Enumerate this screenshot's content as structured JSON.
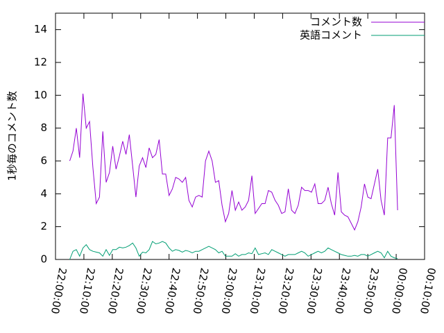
{
  "chart_data": {
    "type": "line",
    "y_label": "1秒毎のコメント数",
    "x": [
      "22:05:00",
      "22:06:10",
      "22:07:20",
      "22:08:30",
      "22:09:40",
      "22:10:50",
      "22:12:00",
      "22:13:10",
      "22:14:20",
      "22:15:30",
      "22:16:40",
      "22:17:50",
      "22:19:00",
      "22:20:10",
      "22:21:20",
      "22:22:30",
      "22:23:40",
      "22:24:50",
      "22:26:00",
      "22:27:10",
      "22:28:20",
      "22:29:30",
      "22:30:40",
      "22:31:50",
      "22:33:00",
      "22:34:10",
      "22:35:20",
      "22:36:30",
      "22:37:40",
      "22:38:50",
      "22:40:00",
      "22:41:10",
      "22:42:20",
      "22:43:30",
      "22:44:40",
      "22:45:50",
      "22:47:00",
      "22:48:10",
      "22:49:20",
      "22:50:30",
      "22:51:40",
      "22:52:50",
      "22:54:00",
      "22:55:10",
      "22:56:20",
      "22:57:30",
      "22:58:40",
      "22:59:50",
      "23:01:00",
      "23:02:10",
      "23:03:20",
      "23:04:30",
      "23:05:40",
      "23:06:50",
      "23:08:00",
      "23:09:10",
      "23:10:20",
      "23:11:30",
      "23:12:40",
      "23:13:50",
      "23:15:00",
      "23:16:10",
      "23:17:20",
      "23:18:30",
      "23:19:40",
      "23:20:50",
      "23:22:00",
      "23:23:10",
      "23:24:20",
      "23:25:30",
      "23:26:40",
      "23:27:50",
      "23:29:00",
      "23:30:10",
      "23:31:20",
      "23:32:30",
      "23:33:40",
      "23:34:50",
      "23:36:00",
      "23:37:10",
      "23:38:20",
      "23:39:30",
      "23:40:40",
      "23:41:50",
      "23:43:00",
      "23:44:10",
      "23:45:20",
      "23:46:30",
      "23:47:40",
      "23:48:50",
      "23:50:00",
      "23:51:10",
      "23:52:20",
      "23:53:30",
      "23:54:40",
      "23:55:50",
      "23:57:00",
      "23:58:10",
      "23:59:20",
      "00:00:30"
    ],
    "series": [
      {
        "name": "コメント数",
        "color": "#9400d3",
        "values": [
          6.0,
          6.6,
          8.0,
          6.2,
          10.1,
          8.0,
          8.4,
          5.6,
          3.4,
          3.8,
          7.8,
          4.7,
          5.3,
          6.9,
          5.5,
          6.3,
          7.2,
          6.4,
          7.6,
          5.7,
          3.8,
          5.7,
          6.2,
          5.6,
          6.8,
          6.2,
          6.4,
          7.3,
          5.2,
          5.2,
          3.9,
          4.3,
          5.0,
          4.9,
          4.7,
          5.0,
          3.6,
          3.2,
          3.8,
          3.9,
          3.8,
          6.0,
          6.6,
          6.0,
          4.7,
          4.8,
          3.3,
          2.3,
          2.8,
          4.2,
          3.0,
          3.5,
          3.0,
          3.2,
          3.6,
          5.1,
          2.8,
          3.1,
          3.4,
          3.4,
          4.2,
          4.1,
          3.6,
          3.3,
          2.8,
          2.9,
          4.3,
          3.0,
          2.8,
          3.3,
          4.4,
          4.2,
          4.2,
          4.1,
          4.6,
          3.4,
          3.4,
          3.6,
          4.4,
          3.4,
          2.7,
          5.3,
          2.9,
          2.7,
          2.6,
          2.2,
          1.8,
          2.3,
          3.2,
          4.6,
          3.8,
          3.7,
          4.6,
          5.5,
          3.6,
          2.7,
          7.4,
          7.4,
          9.4,
          3.0
        ]
      },
      {
        "name": "英語コメント",
        "color": "#009e73",
        "values": [
          0.0,
          0.5,
          0.6,
          0.2,
          0.7,
          0.9,
          0.6,
          0.5,
          0.45,
          0.4,
          0.2,
          0.6,
          0.25,
          0.6,
          0.6,
          0.75,
          0.7,
          0.75,
          0.85,
          1.0,
          0.7,
          0.2,
          0.45,
          0.4,
          0.6,
          1.1,
          0.95,
          1.0,
          1.1,
          1.0,
          0.7,
          0.5,
          0.6,
          0.55,
          0.45,
          0.55,
          0.5,
          0.4,
          0.5,
          0.5,
          0.6,
          0.7,
          0.8,
          0.7,
          0.6,
          0.4,
          0.5,
          0.2,
          0.2,
          0.2,
          0.35,
          0.2,
          0.3,
          0.3,
          0.4,
          0.35,
          0.7,
          0.3,
          0.35,
          0.4,
          0.3,
          0.6,
          0.5,
          0.4,
          0.3,
          0.2,
          0.3,
          0.3,
          0.3,
          0.4,
          0.5,
          0.4,
          0.2,
          0.3,
          0.4,
          0.5,
          0.4,
          0.5,
          0.7,
          0.6,
          0.5,
          0.4,
          0.3,
          0.25,
          0.2,
          0.2,
          0.25,
          0.2,
          0.3,
          0.3,
          0.2,
          0.3,
          0.4,
          0.5,
          0.4,
          0.1,
          0.5,
          0.2,
          0.1,
          0.05
        ]
      }
    ],
    "xlim": [
      "22:00:00",
      "00:10:00"
    ],
    "xticks": [
      "22:00:00",
      "22:10:00",
      "22:20:00",
      "22:30:00",
      "22:40:00",
      "22:50:00",
      "23:00:00",
      "23:10:00",
      "23:20:00",
      "23:30:00",
      "23:40:00",
      "23:50:00",
      "00:00:00",
      "00:10:00"
    ],
    "ylim": [
      0,
      15
    ],
    "yticks": [
      0,
      2,
      4,
      6,
      8,
      10,
      12,
      14
    ],
    "legend": "top-right",
    "grid": false
  }
}
